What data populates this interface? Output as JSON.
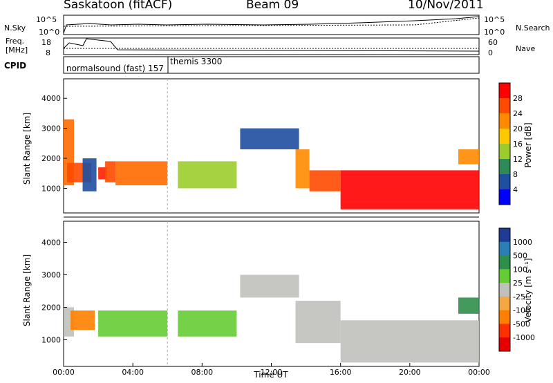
{
  "header": {
    "title": "Saskatoon (fitACF)",
    "beam": "Beam 09",
    "date": "10/Nov/2011"
  },
  "panels": {
    "nsky": {
      "label": "N.Sky",
      "right_label": "N.Search",
      "left_ticks": [
        "10^5",
        "10^0"
      ],
      "right_ticks": [
        "10^5",
        "10^0"
      ]
    },
    "freq": {
      "label": "Freq.",
      "unit": "[MHz]",
      "left_ticks": [
        "18",
        "8"
      ],
      "right_ticks": [
        "60",
        "0"
      ],
      "right_label": "Nave"
    },
    "cpid": {
      "label": "CPID",
      "modes": [
        "normalsound (fast) 157",
        "themis 3300"
      ]
    }
  },
  "colorbars": {
    "power": {
      "label": "Power [dB]",
      "ticks": [
        "28",
        "24",
        "20",
        "16",
        "12",
        "8",
        "4"
      ],
      "colors": [
        "#ff0000",
        "#ff4a00",
        "#ff8a00",
        "#ffc800",
        "#9ccc2b",
        "#2e8b57",
        "#1f4fa0",
        "#0000ff"
      ]
    },
    "velocity": {
      "label": "Velocity [m s⁻¹]",
      "ticks": [
        "1000",
        "500",
        "100",
        "25",
        "-25",
        "-100",
        "-500",
        "-1000"
      ],
      "colors": [
        "#1e3c96",
        "#2d7eb4",
        "#2f8f4a",
        "#66cc33",
        "#c0c0bc",
        "#f4a742",
        "#ff8000",
        "#ff3000",
        "#e60000"
      ]
    }
  },
  "axes": {
    "ylabel": "Slant Range [km]",
    "xlabel": "Time UT",
    "xticks": [
      "00:00",
      "04:00",
      "08:00",
      "12:00",
      "16:00",
      "20:00",
      "00:00"
    ],
    "yticks": [
      "4000",
      "3000",
      "2000",
      "1000"
    ]
  },
  "chart_data": {
    "type": "heatmap",
    "x_range_hours": [
      0,
      24
    ],
    "y_range_km": [
      180,
      4650
    ],
    "cpid_change_hour": 6.0,
    "power_map": [
      {
        "t0": 0.0,
        "t1": 0.6,
        "r0": 1100,
        "r1": 3300,
        "c": "#ff6a00"
      },
      {
        "t0": 0.2,
        "t1": 1.6,
        "r0": 1200,
        "r1": 1850,
        "c": "#ff4a00"
      },
      {
        "t0": 1.1,
        "t1": 1.9,
        "r0": 900,
        "r1": 2000,
        "c": "#1f4fa0"
      },
      {
        "t0": 2.0,
        "t1": 2.5,
        "r0": 1300,
        "r1": 1700,
        "c": "#ff2000"
      },
      {
        "t0": 2.4,
        "t1": 3.0,
        "r0": 1200,
        "r1": 1900,
        "c": "#ff4a00"
      },
      {
        "t0": 3.0,
        "t1": 6.0,
        "r0": 1100,
        "r1": 1900,
        "c": "#ff6a00"
      },
      {
        "t0": 6.6,
        "t1": 10.0,
        "r0": 1000,
        "r1": 1900,
        "c": "#9ccc2b"
      },
      {
        "t0": 10.2,
        "t1": 13.6,
        "r0": 2300,
        "r1": 3000,
        "c": "#1f4fa0"
      },
      {
        "t0": 13.4,
        "t1": 14.2,
        "r0": 1000,
        "r1": 2300,
        "c": "#ff8a00"
      },
      {
        "t0": 14.2,
        "t1": 16.0,
        "r0": 900,
        "r1": 1600,
        "c": "#ff4a00"
      },
      {
        "t0": 16.0,
        "t1": 24.0,
        "r0": 300,
        "r1": 1600,
        "c": "#ff0000"
      },
      {
        "t0": 22.8,
        "t1": 24.0,
        "r0": 1800,
        "r1": 2300,
        "c": "#ff8a00"
      }
    ],
    "velocity_map": [
      {
        "t0": 0.0,
        "t1": 0.6,
        "r0": 1100,
        "r1": 2000,
        "c": "#c0c0bc"
      },
      {
        "t0": 0.4,
        "t1": 1.8,
        "r0": 1300,
        "r1": 1900,
        "c": "#ff8000"
      },
      {
        "t0": 2.0,
        "t1": 6.0,
        "r0": 1100,
        "r1": 1900,
        "c": "#66cc33"
      },
      {
        "t0": 6.6,
        "t1": 10.0,
        "r0": 1100,
        "r1": 1900,
        "c": "#66cc33"
      },
      {
        "t0": 10.2,
        "t1": 13.6,
        "r0": 2300,
        "r1": 3000,
        "c": "#c0c0bc"
      },
      {
        "t0": 13.4,
        "t1": 16.0,
        "r0": 900,
        "r1": 2200,
        "c": "#c0c0bc"
      },
      {
        "t0": 16.0,
        "t1": 24.0,
        "r0": 300,
        "r1": 1600,
        "c": "#c0c0bc"
      },
      {
        "t0": 22.8,
        "t1": 24.0,
        "r0": 1800,
        "r1": 2300,
        "c": "#2f8f4a"
      }
    ]
  }
}
